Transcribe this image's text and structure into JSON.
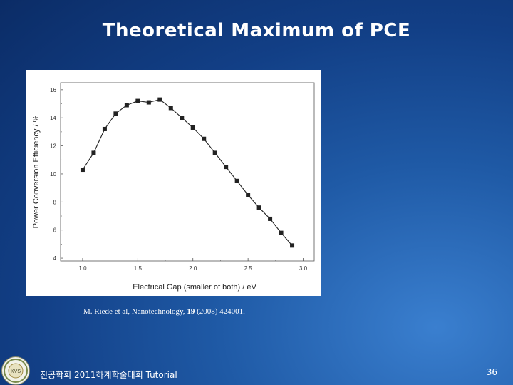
{
  "slide": {
    "title": "Theoretical Maximum of PCE",
    "citation": {
      "authors": "M. Riede et al, Nanotechnology, ",
      "volume": "19",
      "rest": " (2008)  424001."
    },
    "footer": "진공학회 2011하계학술대회 Tutorial",
    "page_number": "36",
    "logo_text": "KVS"
  },
  "chart_data": {
    "type": "line",
    "title": "",
    "xlabel": "Electrical Gap (smaller of both) / eV",
    "ylabel": "Power Conversion Efficiency / %",
    "xlim": [
      0.8,
      3.1
    ],
    "ylim": [
      3.8,
      16.5
    ],
    "xticks": [
      "1.0",
      "1.5",
      "2.0",
      "2.5",
      "3.0"
    ],
    "yticks": [
      "4",
      "6",
      "8",
      "10",
      "12",
      "14",
      "16"
    ],
    "series": [
      {
        "x": [
          1.0,
          1.1,
          1.2,
          1.3,
          1.4,
          1.5,
          1.6,
          1.7,
          1.8,
          1.9,
          2.0,
          2.1,
          2.2,
          2.3,
          2.4,
          2.5,
          2.6,
          2.7,
          2.8,
          2.9
        ],
        "y": [
          10.3,
          11.5,
          13.2,
          14.3,
          14.9,
          15.2,
          15.1,
          15.3,
          14.7,
          14.0,
          13.3,
          12.5,
          11.5,
          10.5,
          9.5,
          8.5,
          7.6,
          6.8,
          5.8,
          4.9
        ],
        "color": "#222222",
        "marker": "square"
      }
    ],
    "grid": false
  }
}
